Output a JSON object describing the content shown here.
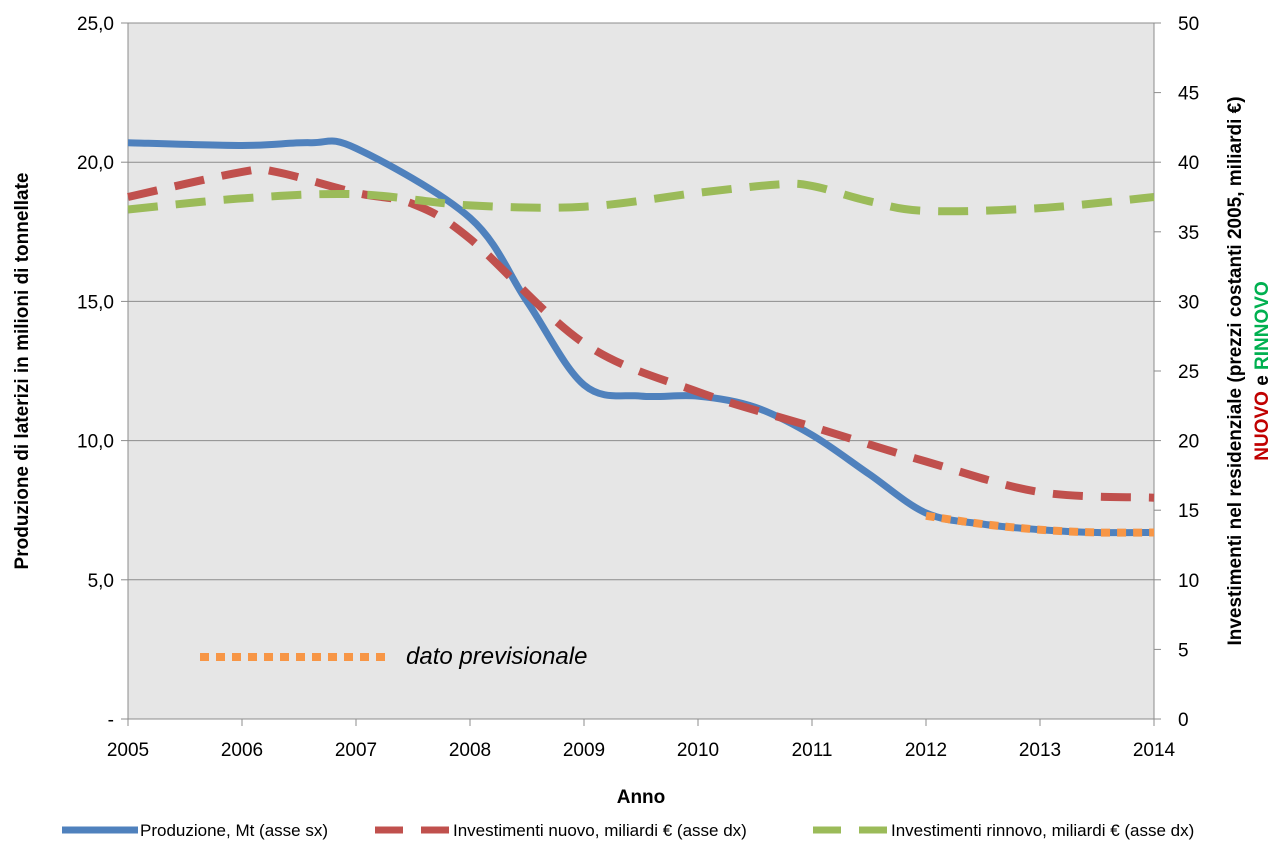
{
  "chart_data": {
    "type": "line",
    "x": [
      2005,
      2006,
      2007,
      2008,
      2009,
      2010,
      2011,
      2012,
      2013,
      2014
    ],
    "xlabel": "Anno",
    "xlim": [
      2005,
      2014
    ],
    "ylabel_left": "Produzione  di laterizi in milioni di tonnellate",
    "ylim_left": [
      0,
      25
    ],
    "yticks_left": [
      "-",
      "5,0",
      "10,0",
      "15,0",
      "20,0",
      "25,0"
    ],
    "ylabel_right_line1": "Investimenti nel residenziale (prezzi  costanti 2005, miliardi €)",
    "ylabel_right_line2": {
      "part1": "NUOVO",
      "part2": " e ",
      "part3": "RINNOVO"
    },
    "ylim_right": [
      0,
      50
    ],
    "yticks_right": [
      "0",
      "5",
      "10",
      "15",
      "20",
      "25",
      "30",
      "35",
      "40",
      "45",
      "50"
    ],
    "grid": true,
    "series": [
      {
        "name": "Produzione, Mt (asse sx)",
        "axis": "left",
        "color": "#4F81BD",
        "style": "solid",
        "points": [
          [
            2005,
            20.7
          ],
          [
            2006,
            20.6
          ],
          [
            2006.6,
            20.7
          ],
          [
            2007,
            20.5
          ],
          [
            2008,
            18.0
          ],
          [
            2008.5,
            15.0
          ],
          [
            2009,
            12.0
          ],
          [
            2009.5,
            11.6
          ],
          [
            2010,
            11.6
          ],
          [
            2010.5,
            11.2
          ],
          [
            2011,
            10.2
          ],
          [
            2011.5,
            8.8
          ],
          [
            2012,
            7.4
          ],
          [
            2012.5,
            7.0
          ],
          [
            2013,
            6.8
          ],
          [
            2013.5,
            6.7
          ],
          [
            2014,
            6.7
          ]
        ]
      },
      {
        "name": "Investimenti nuovo, miliardi € (asse dx)",
        "axis": "right",
        "color": "#C0504D",
        "style": "dashed",
        "points": [
          [
            2005,
            37.5
          ],
          [
            2006,
            39.3
          ],
          [
            2006.3,
            39.3
          ],
          [
            2007,
            37.8
          ],
          [
            2007.5,
            37.0
          ],
          [
            2008,
            34.5
          ],
          [
            2009,
            27.0
          ],
          [
            2010,
            23.5
          ],
          [
            2011,
            21.0
          ],
          [
            2012,
            18.5
          ],
          [
            2013,
            16.3
          ],
          [
            2014,
            15.9
          ]
        ]
      },
      {
        "name": "Investimenti rinnovo, miliardi € (asse dx)",
        "axis": "right",
        "color": "#9BBB59",
        "style": "dashed",
        "points": [
          [
            2005,
            36.6
          ],
          [
            2006,
            37.4
          ],
          [
            2007,
            37.7
          ],
          [
            2008,
            36.9
          ],
          [
            2009,
            36.8
          ],
          [
            2010,
            37.8
          ],
          [
            2010.7,
            38.4
          ],
          [
            2011,
            38.3
          ],
          [
            2011.5,
            37.2
          ],
          [
            2012,
            36.5
          ],
          [
            2013,
            36.7
          ],
          [
            2014,
            37.5
          ]
        ]
      },
      {
        "name": "dato previsionale",
        "axis": "left",
        "color": "#F79646",
        "style": "dotted",
        "points": [
          [
            2012,
            7.3
          ],
          [
            2012.5,
            7.0
          ],
          [
            2013,
            6.8
          ],
          [
            2013.5,
            6.7
          ],
          [
            2014,
            6.7
          ]
        ]
      }
    ],
    "annotation": "dato previsionale",
    "legend_position": "bottom",
    "plot_background": "#E6E6E6"
  }
}
